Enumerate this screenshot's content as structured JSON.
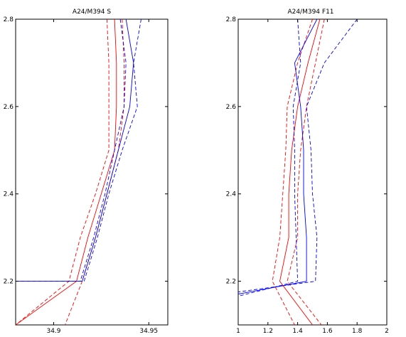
{
  "chart_data": [
    {
      "type": "line",
      "title": "A24/M394 S",
      "xlim": [
        34.88,
        34.96
      ],
      "ylim": [
        2.1,
        2.8
      ],
      "xticks": [
        34.9,
        34.95
      ],
      "xtick_labels": [
        "34.9",
        "34.95"
      ],
      "yticks": [
        2.2,
        2.4,
        2.6,
        2.8
      ],
      "ytick_labels": [
        "2.2",
        "2.4",
        "2.6",
        "2.8"
      ],
      "series": [
        {
          "color": "#ff0000",
          "style": "solid",
          "x": [
            34.932,
            34.933,
            34.933,
            34.932,
            34.925,
            34.918,
            34.912,
            34.88
          ],
          "y": [
            2.8,
            2.7,
            2.6,
            2.5,
            2.4,
            2.3,
            2.2,
            2.1
          ]
        },
        {
          "color": "#ff0000",
          "style": "dashed",
          "x": [
            34.928,
            34.929,
            34.929,
            34.929,
            34.922,
            34.914,
            34.908,
            34.88
          ],
          "y": [
            2.8,
            2.7,
            2.6,
            2.5,
            2.4,
            2.3,
            2.2,
            2.1
          ]
        },
        {
          "color": "#ff0000",
          "style": "dashed",
          "x": [
            34.936,
            34.937,
            34.937,
            34.934,
            34.928,
            34.922,
            34.915,
            34.906
          ],
          "y": [
            2.8,
            2.7,
            2.6,
            2.5,
            2.4,
            2.3,
            2.2,
            2.1
          ]
        },
        {
          "color": "#0000ff",
          "style": "solid",
          "x": [
            34.938,
            34.942,
            34.94,
            34.934,
            34.928,
            34.922,
            34.915,
            34.88
          ],
          "y": [
            2.8,
            2.7,
            2.6,
            2.5,
            2.4,
            2.3,
            2.2,
            2.2
          ]
        },
        {
          "color": "#0000ff",
          "style": "dashed",
          "x": [
            34.935,
            34.938,
            34.937,
            34.932,
            34.927,
            34.921,
            34.914,
            34.88
          ],
          "y": [
            2.8,
            2.7,
            2.6,
            2.5,
            2.4,
            2.3,
            2.2,
            2.2
          ]
        },
        {
          "color": "#0000ff",
          "style": "dashed",
          "x": [
            34.946,
            34.942,
            34.944,
            34.936,
            34.929,
            34.923,
            34.916,
            34.88
          ],
          "y": [
            2.8,
            2.7,
            2.6,
            2.5,
            2.4,
            2.3,
            2.2,
            2.2
          ]
        }
      ]
    },
    {
      "type": "line",
      "title": "A24/M394 F11",
      "xlim": [
        1,
        2
      ],
      "ylim": [
        2.1,
        2.8
      ],
      "xticks": [
        1,
        1.2,
        1.4,
        1.6,
        1.8,
        2
      ],
      "xtick_labels": [
        "1",
        "1.2",
        "1.4",
        "1.6",
        "1.8",
        "2"
      ],
      "yticks": [
        2.2,
        2.4,
        2.6,
        2.8
      ],
      "ytick_labels": [
        "2.2",
        "2.4",
        "2.6",
        "2.8"
      ],
      "series": [
        {
          "color": "#ff0000",
          "style": "solid",
          "x": [
            1.55,
            1.47,
            1.4,
            1.36,
            1.34,
            1.34,
            1.28,
            1.5
          ],
          "y": [
            2.8,
            2.7,
            2.6,
            2.5,
            2.4,
            2.3,
            2.2,
            2.1
          ]
        },
        {
          "color": "#ff0000",
          "style": "dashed",
          "x": [
            1.5,
            1.4,
            1.33,
            1.32,
            1.3,
            1.28,
            1.23,
            1.38
          ],
          "y": [
            2.8,
            2.7,
            2.6,
            2.5,
            2.4,
            2.3,
            2.2,
            2.1
          ]
        },
        {
          "color": "#ff0000",
          "style": "dashed",
          "x": [
            1.58,
            1.52,
            1.46,
            1.42,
            1.4,
            1.4,
            1.33,
            1.56
          ],
          "y": [
            2.8,
            2.7,
            2.6,
            2.5,
            2.4,
            2.3,
            2.2,
            2.1
          ]
        },
        {
          "color": "#0000ff",
          "style": "solid",
          "x": [
            1.53,
            1.38,
            1.42,
            1.44,
            1.44,
            1.46,
            1.46,
            0.99
          ],
          "y": [
            2.8,
            2.7,
            2.6,
            2.5,
            2.4,
            2.3,
            2.2,
            2.17
          ]
        },
        {
          "color": "#0000ff",
          "style": "dashed",
          "x": [
            1.4,
            1.42,
            1.37,
            1.38,
            1.38,
            1.39,
            1.4,
            0.99
          ],
          "y": [
            2.8,
            2.7,
            2.6,
            2.5,
            2.4,
            2.3,
            2.2,
            2.165
          ]
        },
        {
          "color": "#0000ff",
          "style": "dashed",
          "x": [
            1.8,
            1.58,
            1.46,
            1.49,
            1.5,
            1.53,
            1.52,
            0.99
          ],
          "y": [
            2.8,
            2.7,
            2.6,
            2.5,
            2.4,
            2.3,
            2.2,
            2.175
          ]
        }
      ]
    }
  ]
}
